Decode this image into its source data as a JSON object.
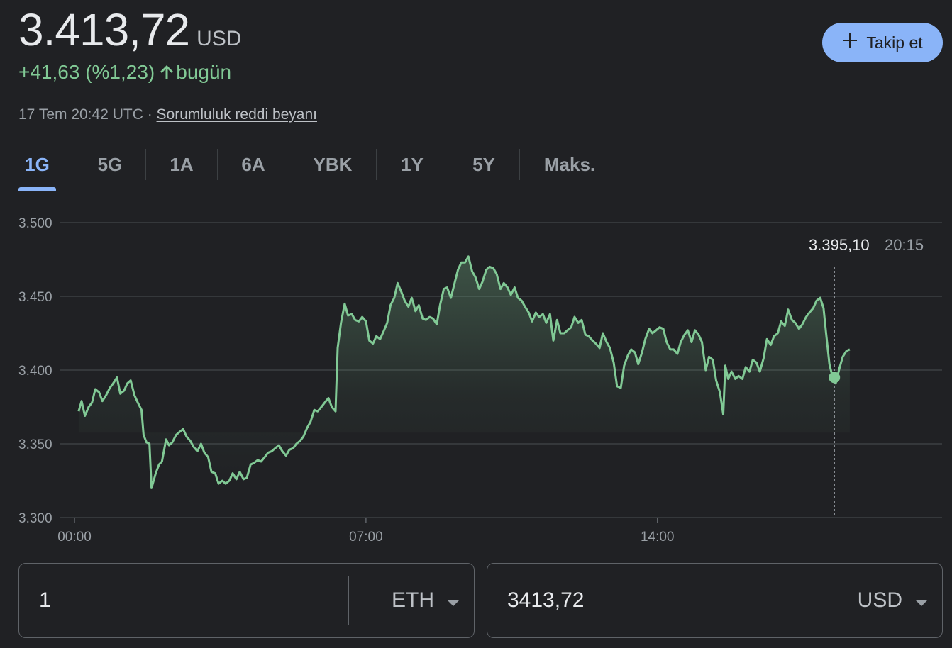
{
  "quote": {
    "price": "3.413,72",
    "currency": "USD",
    "change": "+41,63 (%1,23)",
    "change_period": "bugün",
    "timestamp": "17 Tem 20:42 UTC · ",
    "disclaimer": "Sorumluluk reddi beyanı"
  },
  "follow_button": {
    "label": "Takip et",
    "icon": "plus-icon"
  },
  "tabs": [
    {
      "label": "1G",
      "active": true
    },
    {
      "label": "5G"
    },
    {
      "label": "1A"
    },
    {
      "label": "6A"
    },
    {
      "label": "YBK"
    },
    {
      "label": "1Y"
    },
    {
      "label": "5Y"
    },
    {
      "label": "Maks."
    }
  ],
  "chart_data": {
    "type": "area",
    "x_unit": "hours UTC",
    "xlim": [
      0,
      20.7
    ],
    "ylim": [
      3300,
      3500
    ],
    "y_ticks": [
      3500,
      3450,
      3400,
      3350,
      3300
    ],
    "y_tick_labels": [
      "3.500",
      "3.450",
      "3.400",
      "3.350",
      "3.300"
    ],
    "x_ticks": [
      0,
      7,
      14
    ],
    "x_tick_labels": [
      "00:00",
      "07:00",
      "14:00"
    ],
    "grid": true,
    "line_color": "#81c995",
    "points": [
      [
        0.1,
        3372
      ],
      [
        0.17,
        3379
      ],
      [
        0.25,
        3369
      ],
      [
        0.34,
        3375
      ],
      [
        0.42,
        3378
      ],
      [
        0.5,
        3387
      ],
      [
        0.59,
        3385
      ],
      [
        0.67,
        3379
      ],
      [
        0.76,
        3383
      ],
      [
        0.85,
        3388
      ],
      [
        0.93,
        3391
      ],
      [
        1.02,
        3395
      ],
      [
        1.1,
        3384
      ],
      [
        1.19,
        3386
      ],
      [
        1.27,
        3391
      ],
      [
        1.35,
        3393
      ],
      [
        1.44,
        3383
      ],
      [
        1.52,
        3378
      ],
      [
        1.61,
        3373
      ],
      [
        1.66,
        3356
      ],
      [
        1.73,
        3351
      ],
      [
        1.8,
        3350
      ],
      [
        1.85,
        3320
      ],
      [
        1.95,
        3330
      ],
      [
        2.03,
        3336
      ],
      [
        2.1,
        3338
      ],
      [
        2.2,
        3353
      ],
      [
        2.27,
        3349
      ],
      [
        2.35,
        3351
      ],
      [
        2.44,
        3356
      ],
      [
        2.52,
        3358
      ],
      [
        2.61,
        3360
      ],
      [
        2.69,
        3355
      ],
      [
        2.78,
        3352
      ],
      [
        2.86,
        3348
      ],
      [
        2.95,
        3345
      ],
      [
        3.04,
        3350
      ],
      [
        3.12,
        3344
      ],
      [
        3.21,
        3341
      ],
      [
        3.29,
        3331
      ],
      [
        3.38,
        3330
      ],
      [
        3.46,
        3323
      ],
      [
        3.55,
        3325
      ],
      [
        3.63,
        3323
      ],
      [
        3.72,
        3325
      ],
      [
        3.8,
        3330
      ],
      [
        3.89,
        3326
      ],
      [
        3.97,
        3331
      ],
      [
        4.06,
        3326
      ],
      [
        4.14,
        3327
      ],
      [
        4.23,
        3336
      ],
      [
        4.31,
        3337
      ],
      [
        4.4,
        3339
      ],
      [
        4.48,
        3338
      ],
      [
        4.57,
        3341
      ],
      [
        4.65,
        3344
      ],
      [
        4.74,
        3345
      ],
      [
        4.82,
        3347
      ],
      [
        4.91,
        3349
      ],
      [
        4.99,
        3345
      ],
      [
        5.08,
        3342
      ],
      [
        5.16,
        3346
      ],
      [
        5.25,
        3347
      ],
      [
        5.33,
        3350
      ],
      [
        5.42,
        3352
      ],
      [
        5.5,
        3355
      ],
      [
        5.59,
        3361
      ],
      [
        5.67,
        3365
      ],
      [
        5.76,
        3373
      ],
      [
        5.84,
        3372
      ],
      [
        5.93,
        3375
      ],
      [
        6.01,
        3378
      ],
      [
        6.1,
        3381
      ],
      [
        6.18,
        3375
      ],
      [
        6.27,
        3372
      ],
      [
        6.32,
        3415
      ],
      [
        6.4,
        3432
      ],
      [
        6.49,
        3445
      ],
      [
        6.57,
        3437
      ],
      [
        6.66,
        3438
      ],
      [
        6.74,
        3434
      ],
      [
        6.83,
        3433
      ],
      [
        6.91,
        3436
      ],
      [
        7.0,
        3433
      ],
      [
        7.08,
        3420
      ],
      [
        7.17,
        3418
      ],
      [
        7.25,
        3423
      ],
      [
        7.34,
        3421
      ],
      [
        7.42,
        3426
      ],
      [
        7.51,
        3432
      ],
      [
        7.59,
        3444
      ],
      [
        7.68,
        3449
      ],
      [
        7.76,
        3459
      ],
      [
        7.85,
        3453
      ],
      [
        7.93,
        3447
      ],
      [
        8.02,
        3443
      ],
      [
        8.1,
        3449
      ],
      [
        8.19,
        3440
      ],
      [
        8.27,
        3444
      ],
      [
        8.36,
        3435
      ],
      [
        8.44,
        3434
      ],
      [
        8.53,
        3436
      ],
      [
        8.61,
        3435
      ],
      [
        8.7,
        3431
      ],
      [
        8.78,
        3444
      ],
      [
        8.87,
        3455
      ],
      [
        8.95,
        3456
      ],
      [
        9.04,
        3449
      ],
      [
        9.12,
        3458
      ],
      [
        9.21,
        3468
      ],
      [
        9.29,
        3473
      ],
      [
        9.38,
        3473
      ],
      [
        9.46,
        3477
      ],
      [
        9.55,
        3467
      ],
      [
        9.63,
        3463
      ],
      [
        9.72,
        3455
      ],
      [
        9.8,
        3460
      ],
      [
        9.89,
        3468
      ],
      [
        9.97,
        3470
      ],
      [
        10.06,
        3469
      ],
      [
        10.14,
        3465
      ],
      [
        10.23,
        3455
      ],
      [
        10.31,
        3459
      ],
      [
        10.4,
        3456
      ],
      [
        10.48,
        3451
      ],
      [
        10.57,
        3456
      ],
      [
        10.65,
        3449
      ],
      [
        10.74,
        3447
      ],
      [
        10.82,
        3443
      ],
      [
        10.91,
        3439
      ],
      [
        10.99,
        3433
      ],
      [
        11.08,
        3439
      ],
      [
        11.16,
        3436
      ],
      [
        11.25,
        3438
      ],
      [
        11.33,
        3432
      ],
      [
        11.42,
        3438
      ],
      [
        11.5,
        3420
      ],
      [
        11.59,
        3434
      ],
      [
        11.67,
        3425
      ],
      [
        11.76,
        3425
      ],
      [
        11.84,
        3427
      ],
      [
        11.93,
        3429
      ],
      [
        12.01,
        3436
      ],
      [
        12.1,
        3432
      ],
      [
        12.18,
        3434
      ],
      [
        12.27,
        3424
      ],
      [
        12.35,
        3423
      ],
      [
        12.44,
        3420
      ],
      [
        12.52,
        3418
      ],
      [
        12.61,
        3415
      ],
      [
        12.69,
        3425
      ],
      [
        12.78,
        3419
      ],
      [
        12.86,
        3415
      ],
      [
        12.95,
        3405
      ],
      [
        13.03,
        3389
      ],
      [
        13.12,
        3388
      ],
      [
        13.2,
        3403
      ],
      [
        13.29,
        3410
      ],
      [
        13.37,
        3414
      ],
      [
        13.46,
        3412
      ],
      [
        13.54,
        3404
      ],
      [
        13.63,
        3412
      ],
      [
        13.71,
        3421
      ],
      [
        13.8,
        3428
      ],
      [
        13.88,
        3425
      ],
      [
        13.97,
        3427
      ],
      [
        14.05,
        3429
      ],
      [
        14.14,
        3428
      ],
      [
        14.22,
        3419
      ],
      [
        14.31,
        3414
      ],
      [
        14.39,
        3414
      ],
      [
        14.48,
        3411
      ],
      [
        14.56,
        3419
      ],
      [
        14.65,
        3424
      ],
      [
        14.73,
        3427
      ],
      [
        14.82,
        3419
      ],
      [
        14.9,
        3427
      ],
      [
        14.99,
        3424
      ],
      [
        15.07,
        3419
      ],
      [
        15.16,
        3400
      ],
      [
        15.24,
        3409
      ],
      [
        15.33,
        3407
      ],
      [
        15.41,
        3393
      ],
      [
        15.5,
        3385
      ],
      [
        15.58,
        3370
      ],
      [
        15.63,
        3403
      ],
      [
        15.7,
        3394
      ],
      [
        15.78,
        3399
      ],
      [
        15.87,
        3394
      ],
      [
        15.95,
        3396
      ],
      [
        16.04,
        3394
      ],
      [
        16.12,
        3402
      ],
      [
        16.21,
        3399
      ],
      [
        16.29,
        3407
      ],
      [
        16.38,
        3405
      ],
      [
        16.46,
        3399
      ],
      [
        16.55,
        3408
      ],
      [
        16.63,
        3421
      ],
      [
        16.72,
        3417
      ],
      [
        16.8,
        3423
      ],
      [
        16.89,
        3425
      ],
      [
        16.97,
        3433
      ],
      [
        17.06,
        3430
      ],
      [
        17.14,
        3441
      ],
      [
        17.23,
        3434
      ],
      [
        17.31,
        3432
      ],
      [
        17.4,
        3428
      ],
      [
        17.48,
        3431
      ],
      [
        17.57,
        3436
      ],
      [
        17.65,
        3439
      ],
      [
        17.74,
        3442
      ],
      [
        17.82,
        3447
      ],
      [
        17.91,
        3449
      ],
      [
        17.99,
        3442
      ],
      [
        18.05,
        3425
      ],
      [
        18.13,
        3404
      ],
      [
        18.2,
        3396
      ],
      [
        18.28,
        3391
      ],
      [
        18.37,
        3401
      ],
      [
        18.45,
        3409
      ],
      [
        18.54,
        3413
      ],
      [
        18.62,
        3414
      ]
    ],
    "tooltip": {
      "value": "3.395,10",
      "time": "20:15",
      "x": 18.25,
      "y": 3395
    }
  },
  "converter": {
    "from": {
      "value": "1",
      "unit": "ETH"
    },
    "to": {
      "value": "3413,72",
      "unit": "USD"
    }
  }
}
